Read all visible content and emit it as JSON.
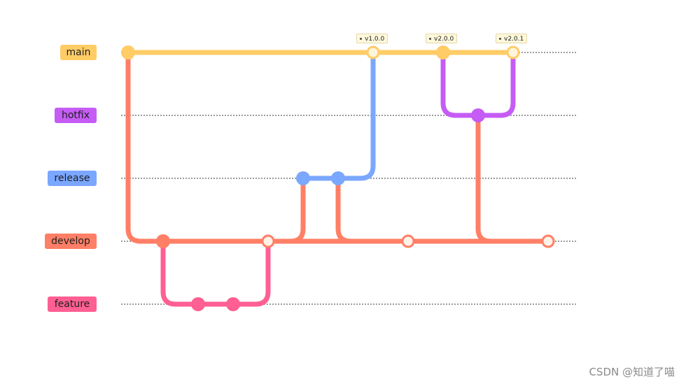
{
  "branches": [
    {
      "key": "main",
      "label": "main",
      "color": "#ffcc66"
    },
    {
      "key": "hotfix",
      "label": "hotfix",
      "color": "#c55cf5"
    },
    {
      "key": "release",
      "label": "release",
      "color": "#7aa7ff"
    },
    {
      "key": "develop",
      "label": "develop",
      "color": "#ff7f66"
    },
    {
      "key": "feature",
      "label": "feature",
      "color": "#ff5f93"
    }
  ],
  "tags": [
    "v1.0.0",
    "v2.0.0",
    "v2.0.1"
  ],
  "watermark": "CSDN @知道了喵"
}
